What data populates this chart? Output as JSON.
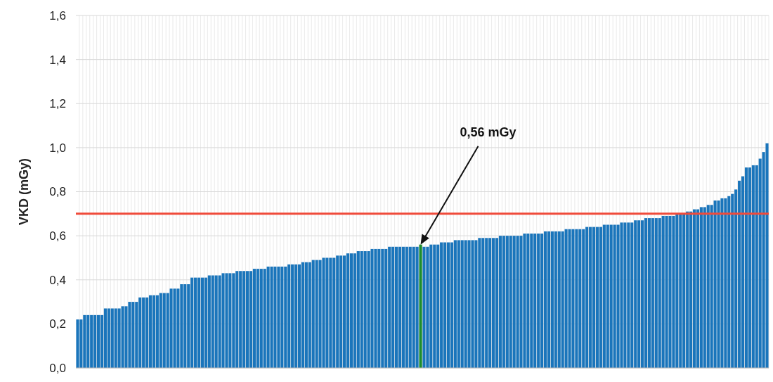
{
  "chart_data": {
    "type": "bar",
    "ylabel": "VKD (mGy)",
    "categories": [
      null,
      null,
      null,
      null,
      null,
      null,
      null,
      null,
      null,
      null,
      null,
      null,
      null,
      null,
      null,
      null,
      null,
      null,
      null,
      null,
      null,
      null,
      null,
      null,
      null,
      null,
      null,
      null,
      null,
      null,
      null,
      null,
      null,
      null,
      null,
      null,
      null,
      null,
      null,
      null,
      null,
      null,
      null,
      null,
      null,
      null,
      null,
      null,
      null,
      null,
      null,
      null,
      null,
      null,
      null,
      null,
      null,
      null,
      null,
      null,
      null,
      null,
      null,
      null,
      null,
      null,
      null,
      null,
      null,
      null,
      null,
      null,
      null,
      null,
      null,
      null,
      null,
      null,
      null,
      null,
      null,
      null,
      null,
      null,
      null,
      null,
      null,
      null,
      null,
      null,
      null,
      null,
      null,
      null,
      null,
      null,
      null,
      null,
      null,
      null,
      null,
      null,
      null,
      null,
      null,
      null,
      null,
      null,
      null,
      null,
      null,
      null,
      null,
      null,
      null,
      null,
      null,
      null,
      null,
      null,
      null,
      null,
      null,
      null,
      null,
      null,
      null,
      null,
      null,
      null,
      null,
      null,
      null,
      null,
      null,
      null,
      null,
      null,
      null,
      null,
      null,
      null,
      null,
      null,
      null,
      null,
      null,
      null,
      null,
      null,
      null,
      null,
      null,
      null,
      null,
      null,
      null,
      null,
      null,
      null,
      null,
      null,
      null,
      null,
      null,
      null,
      null,
      null,
      null,
      null,
      null,
      null,
      null,
      null,
      null,
      null,
      null,
      null,
      null,
      null,
      null,
      null,
      null,
      null,
      null,
      null,
      null,
      null,
      null,
      null,
      null,
      null,
      null,
      null,
      null,
      null,
      null,
      null,
      null,
      null
    ],
    "values": [
      0.22,
      0.22,
      0.24,
      0.24,
      0.24,
      0.24,
      0.24,
      0.24,
      0.27,
      0.27,
      0.27,
      0.27,
      0.27,
      0.28,
      0.28,
      0.3,
      0.3,
      0.3,
      0.32,
      0.32,
      0.32,
      0.33,
      0.33,
      0.33,
      0.34,
      0.34,
      0.34,
      0.36,
      0.36,
      0.36,
      0.38,
      0.38,
      0.38,
      0.41,
      0.41,
      0.41,
      0.41,
      0.41,
      0.42,
      0.42,
      0.42,
      0.42,
      0.43,
      0.43,
      0.43,
      0.43,
      0.44,
      0.44,
      0.44,
      0.44,
      0.44,
      0.45,
      0.45,
      0.45,
      0.45,
      0.46,
      0.46,
      0.46,
      0.46,
      0.46,
      0.46,
      0.47,
      0.47,
      0.47,
      0.47,
      0.48,
      0.48,
      0.48,
      0.49,
      0.49,
      0.49,
      0.5,
      0.5,
      0.5,
      0.5,
      0.51,
      0.51,
      0.51,
      0.52,
      0.52,
      0.52,
      0.53,
      0.53,
      0.53,
      0.53,
      0.54,
      0.54,
      0.54,
      0.54,
      0.54,
      0.55,
      0.55,
      0.55,
      0.55,
      0.55,
      0.55,
      0.55,
      0.55,
      0.55,
      0.56,
      0.55,
      0.55,
      0.56,
      0.56,
      0.56,
      0.57,
      0.57,
      0.57,
      0.57,
      0.58,
      0.58,
      0.58,
      0.58,
      0.58,
      0.58,
      0.58,
      0.59,
      0.59,
      0.59,
      0.59,
      0.59,
      0.59,
      0.6,
      0.6,
      0.6,
      0.6,
      0.6,
      0.6,
      0.6,
      0.61,
      0.61,
      0.61,
      0.61,
      0.61,
      0.61,
      0.62,
      0.62,
      0.62,
      0.62,
      0.62,
      0.62,
      0.63,
      0.63,
      0.63,
      0.63,
      0.63,
      0.63,
      0.64,
      0.64,
      0.64,
      0.64,
      0.64,
      0.65,
      0.65,
      0.65,
      0.65,
      0.65,
      0.66,
      0.66,
      0.66,
      0.66,
      0.67,
      0.67,
      0.67,
      0.68,
      0.68,
      0.68,
      0.68,
      0.68,
      0.69,
      0.69,
      0.69,
      0.69,
      0.7,
      0.7,
      0.7,
      0.71,
      0.71,
      0.72,
      0.72,
      0.73,
      0.73,
      0.74,
      0.74,
      0.76,
      0.76,
      0.77,
      0.77,
      0.78,
      0.79,
      0.81,
      0.85,
      0.87,
      0.91,
      0.91,
      0.92,
      0.92,
      0.95,
      0.98,
      1.02
    ],
    "colors": [
      "#1a75bb",
      "#1a75bb",
      "#1a75bb",
      "#1a75bb",
      "#1a75bb",
      "#1a75bb",
      "#1a75bb",
      "#1a75bb",
      "#1a75bb",
      "#1a75bb",
      "#1a75bb",
      "#1a75bb",
      "#1a75bb",
      "#1a75bb",
      "#1a75bb",
      "#1a75bb",
      "#1a75bb",
      "#1a75bb",
      "#1a75bb",
      "#1a75bb",
      "#1a75bb",
      "#1a75bb",
      "#1a75bb",
      "#1a75bb",
      "#1a75bb",
      "#1a75bb",
      "#1a75bb",
      "#1a75bb",
      "#1a75bb",
      "#1a75bb",
      "#1a75bb",
      "#1a75bb",
      "#1a75bb",
      "#1a75bb",
      "#1a75bb",
      "#1a75bb",
      "#1a75bb",
      "#1a75bb",
      "#1a75bb",
      "#1a75bb",
      "#1a75bb",
      "#1a75bb",
      "#1a75bb",
      "#1a75bb",
      "#1a75bb",
      "#1a75bb",
      "#1a75bb",
      "#1a75bb",
      "#1a75bb",
      "#1a75bb",
      "#1a75bb",
      "#1a75bb",
      "#1a75bb",
      "#1a75bb",
      "#1a75bb",
      "#1a75bb",
      "#1a75bb",
      "#1a75bb",
      "#1a75bb",
      "#1a75bb",
      "#1a75bb",
      "#1a75bb",
      "#1a75bb",
      "#1a75bb",
      "#1a75bb",
      "#1a75bb",
      "#1a75bb",
      "#1a75bb",
      "#1a75bb",
      "#1a75bb",
      "#1a75bb",
      "#1a75bb",
      "#1a75bb",
      "#1a75bb",
      "#1a75bb",
      "#1a75bb",
      "#1a75bb",
      "#1a75bb",
      "#1a75bb",
      "#1a75bb",
      "#1a75bb",
      "#1a75bb",
      "#1a75bb",
      "#1a75bb",
      "#1a75bb",
      "#1a75bb",
      "#1a75bb",
      "#1a75bb",
      "#1a75bb",
      "#1a75bb",
      "#1a75bb",
      "#1a75bb",
      "#1a75bb",
      "#1a75bb",
      "#1a75bb",
      "#1a75bb",
      "#1a75bb",
      "#1a75bb",
      "#1a75bb",
      "#1c8c2c",
      "#1a75bb",
      "#1a75bb",
      "#1a75bb",
      "#1a75bb",
      "#1a75bb",
      "#1a75bb",
      "#1a75bb",
      "#1a75bb",
      "#1a75bb",
      "#1a75bb",
      "#1a75bb",
      "#1a75bb",
      "#1a75bb",
      "#1a75bb",
      "#1a75bb",
      "#1a75bb",
      "#1a75bb",
      "#1a75bb",
      "#1a75bb",
      "#1a75bb",
      "#1a75bb",
      "#1a75bb",
      "#1a75bb",
      "#1a75bb",
      "#1a75bb",
      "#1a75bb",
      "#1a75bb",
      "#1a75bb",
      "#1a75bb",
      "#1a75bb",
      "#1a75bb",
      "#1a75bb",
      "#1a75bb",
      "#1a75bb",
      "#1a75bb",
      "#1a75bb",
      "#1a75bb",
      "#1a75bb",
      "#1a75bb",
      "#1a75bb",
      "#1a75bb",
      "#1a75bb",
      "#1a75bb",
      "#1a75bb",
      "#1a75bb",
      "#1a75bb",
      "#1a75bb",
      "#1a75bb",
      "#1a75bb",
      "#1a75bb",
      "#1a75bb",
      "#1a75bb",
      "#1a75bb",
      "#1a75bb",
      "#1a75bb",
      "#1a75bb",
      "#1a75bb",
      "#1a75bb",
      "#1a75bb",
      "#1a75bb",
      "#1a75bb",
      "#1a75bb",
      "#1a75bb",
      "#1a75bb",
      "#1a75bb",
      "#1a75bb",
      "#1a75bb",
      "#1a75bb",
      "#1a75bb",
      "#1a75bb",
      "#1a75bb",
      "#1a75bb",
      "#1a75bb",
      "#1a75bb",
      "#1a75bb",
      "#1a75bb",
      "#1a75bb",
      "#1a75bb",
      "#1a75bb",
      "#1a75bb",
      "#1a75bb",
      "#1a75bb",
      "#1a75bb",
      "#1a75bb",
      "#1a75bb",
      "#1a75bb",
      "#1a75bb",
      "#1a75bb",
      "#1a75bb",
      "#1a75bb",
      "#1a75bb",
      "#1a75bb",
      "#1a75bb",
      "#1a75bb",
      "#1a75bb",
      "#1a75bb",
      "#1a75bb",
      "#1a75bb",
      "#1a75bb",
      "#1a75bb"
    ],
    "ylim": [
      0,
      1.6
    ],
    "yticks": [
      {
        "value": 0,
        "label": "0,0"
      },
      {
        "value": 0.2,
        "label": "0,2"
      },
      {
        "value": 0.4,
        "label": "0,4"
      },
      {
        "value": 0.6,
        "label": "0,6"
      },
      {
        "value": 0.8,
        "label": "0,8"
      },
      {
        "value": 1.0,
        "label": "1,0"
      },
      {
        "value": 1.2,
        "label": "1,2"
      },
      {
        "value": 1.4,
        "label": "1,4"
      },
      {
        "value": 1.6,
        "label": "1,6"
      }
    ],
    "grid": true,
    "ref_lines": [
      {
        "axis": "y",
        "value": 0.7,
        "color": "#f04a3a"
      }
    ],
    "annotations": [
      "0,56 mGy"
    ]
  }
}
